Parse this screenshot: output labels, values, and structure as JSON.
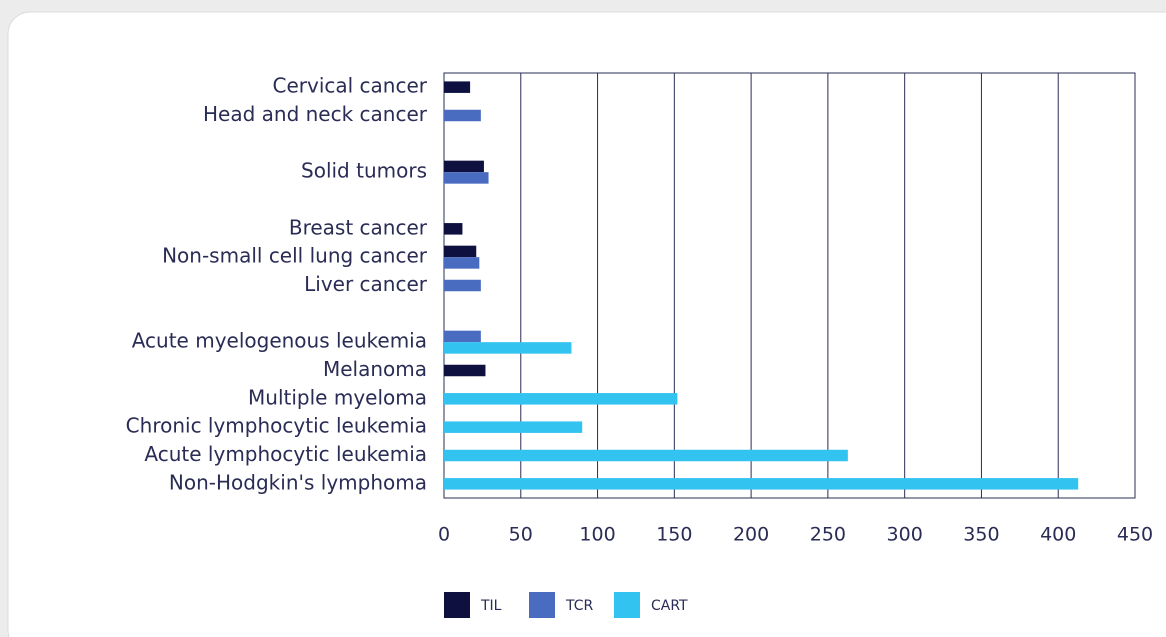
{
  "chart_data": {
    "type": "bar",
    "orientation": "horizontal",
    "categories": [
      "Cervical cancer",
      "Head and neck cancer",
      null,
      "Solid tumors",
      null,
      "Breast cancer",
      "Non-small cell lung cancer",
      "Liver cancer",
      null,
      "Acute myelogenous leukemia",
      "Melanoma",
      "Multiple myeloma",
      "Chronic lymphocytic leukemia",
      "Acute lymphocytic leukemia",
      "Non-Hodgkin's lymphoma"
    ],
    "series": [
      {
        "name": "TIL",
        "color": "#0e1040",
        "values": [
          17,
          null,
          null,
          26,
          null,
          12,
          21,
          null,
          null,
          null,
          27,
          null,
          null,
          null,
          null
        ]
      },
      {
        "name": "TCR",
        "color": "#4a6cc0",
        "values": [
          null,
          24,
          null,
          29,
          null,
          null,
          23,
          24,
          null,
          24,
          null,
          null,
          null,
          null,
          null
        ]
      },
      {
        "name": "CART",
        "color": "#33c3f1",
        "values": [
          null,
          null,
          null,
          null,
          null,
          null,
          null,
          null,
          null,
          83,
          null,
          152,
          90,
          263,
          413
        ]
      }
    ],
    "xlim": [
      0,
      450
    ],
    "xticks": [
      0,
      50,
      100,
      150,
      200,
      250,
      300,
      350,
      400,
      450
    ],
    "grid": true,
    "legend": "bottom"
  }
}
